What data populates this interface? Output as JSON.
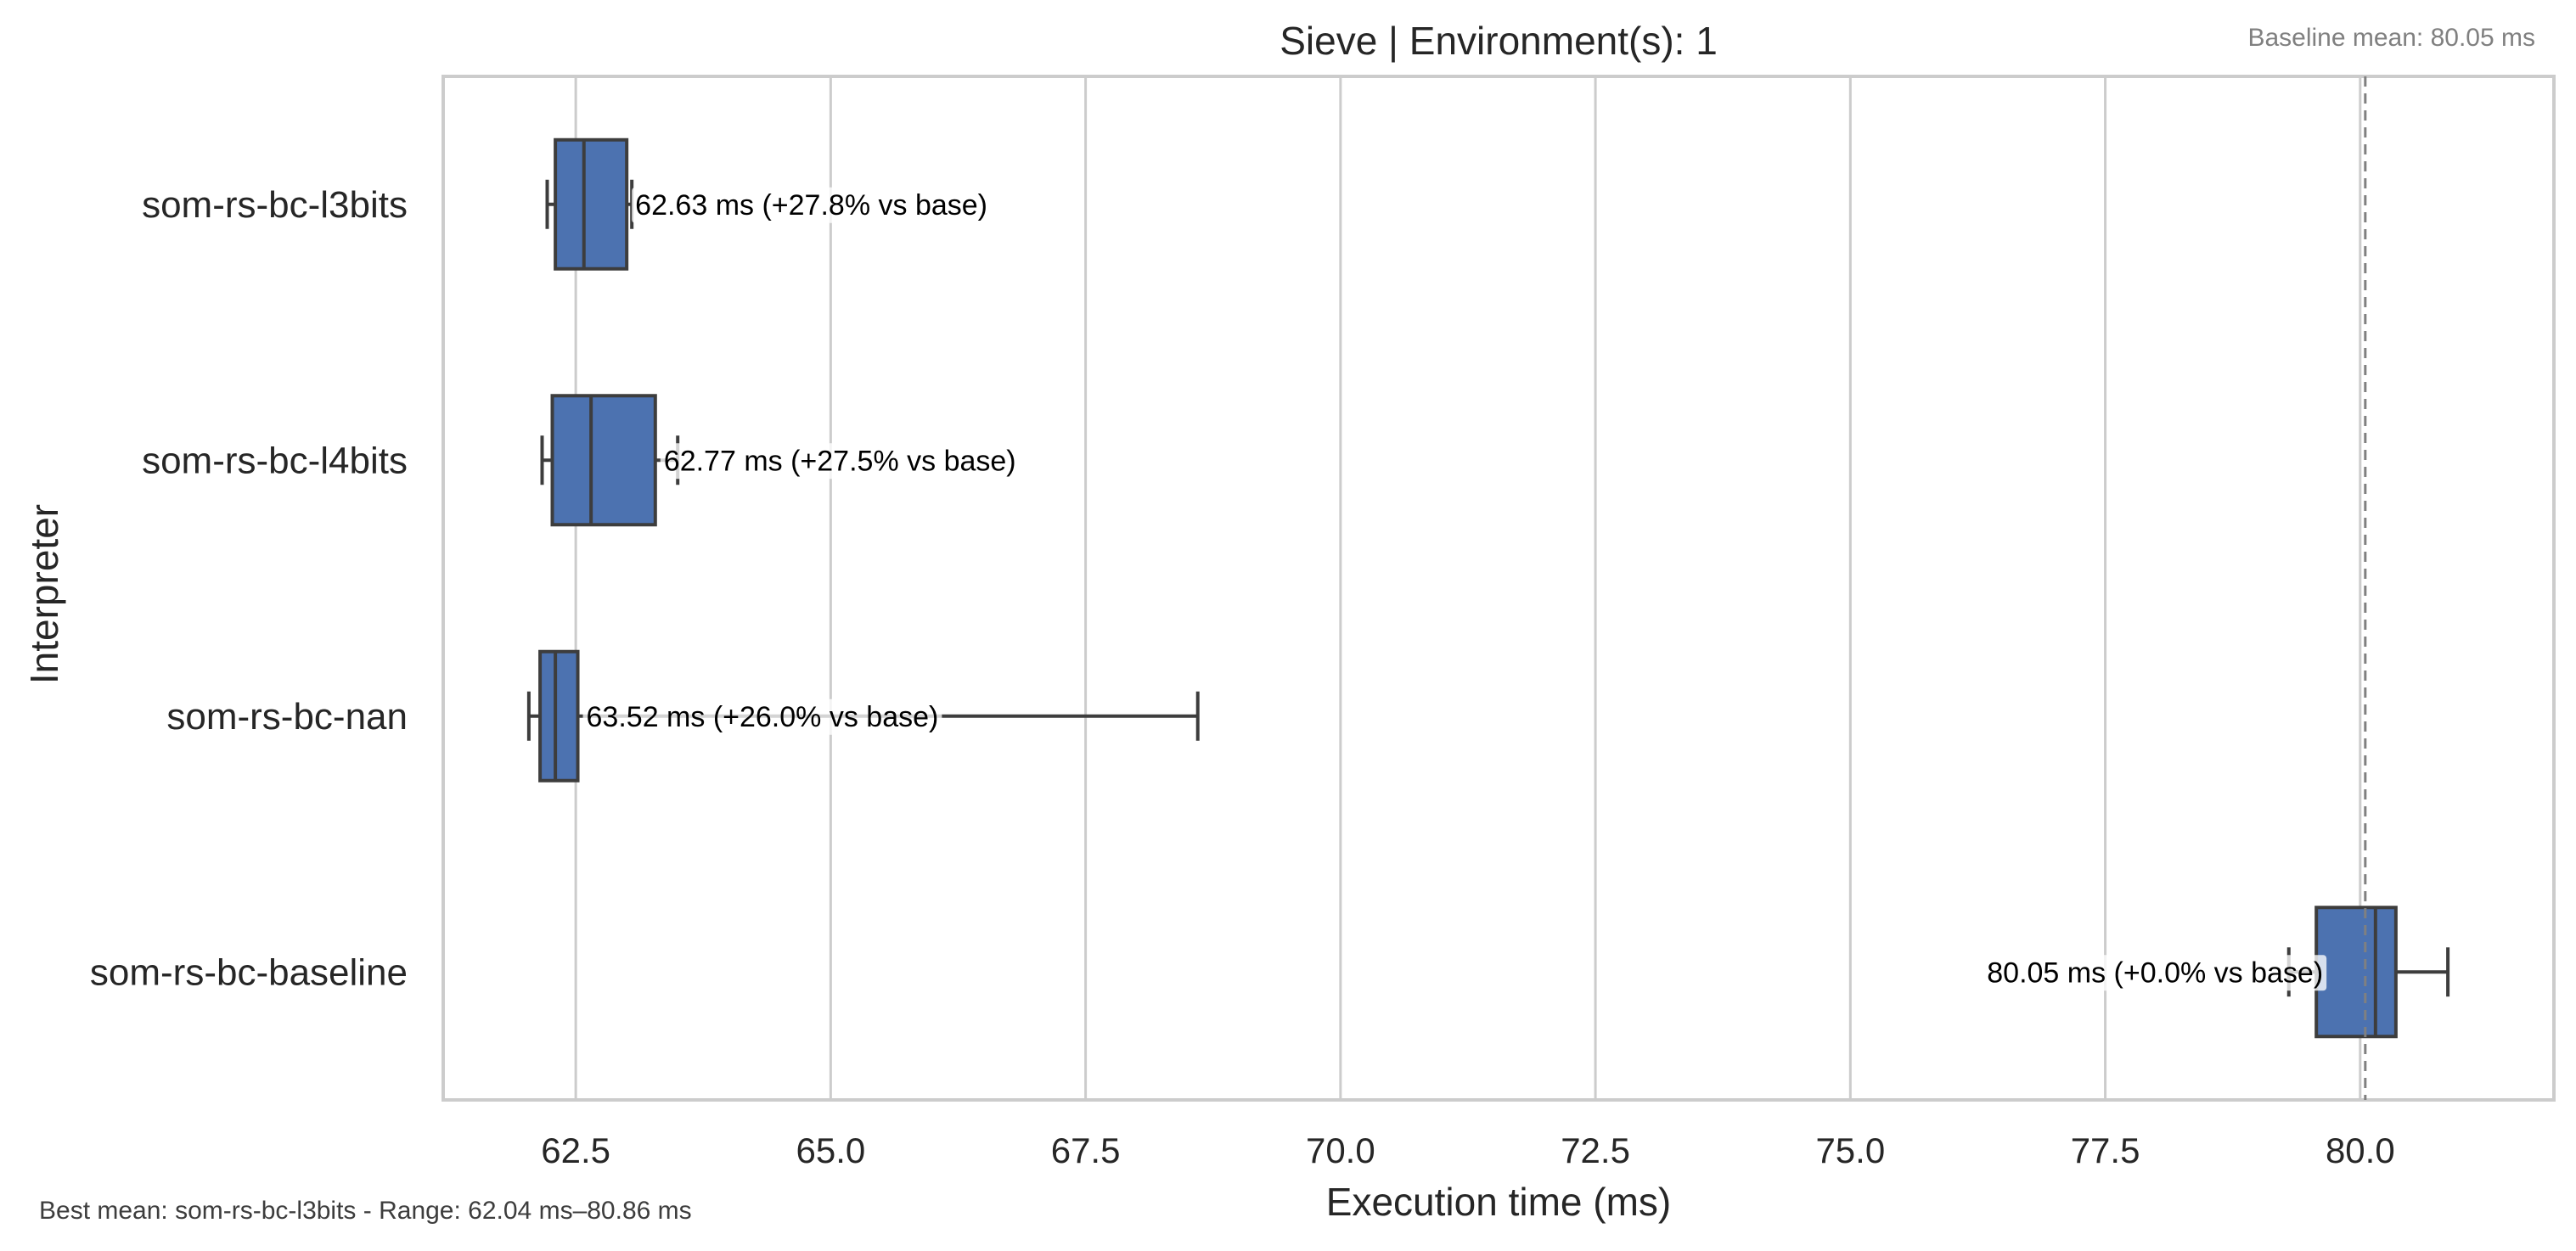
{
  "chart_data": {
    "type": "box",
    "orientation": "horizontal",
    "title": "Sieve | Environment(s): 1",
    "xlabel": "Execution time (ms)",
    "ylabel": "Interpreter",
    "xlim": [
      61.2,
      81.9
    ],
    "xticks": [
      62.5,
      65.0,
      67.5,
      70.0,
      72.5,
      75.0,
      77.5,
      80.0
    ],
    "xtick_labels": [
      "62.5",
      "65.0",
      "67.5",
      "70.0",
      "72.5",
      "75.0",
      "77.5",
      "80.0"
    ],
    "grid": "vertical",
    "categories": [
      "som-rs-bc-l3bits",
      "som-rs-bc-l4bits",
      "som-rs-bc-nan",
      "som-rs-bc-baseline"
    ],
    "boxes": [
      {
        "category": "som-rs-bc-l3bits",
        "whisker_low": 62.22,
        "q1": 62.3,
        "median": 62.58,
        "q3": 63.0,
        "whisker_high": 63.05,
        "mean": 62.63,
        "label": "62.63 ms  (+27.8% vs base)"
      },
      {
        "category": "som-rs-bc-l4bits",
        "whisker_low": 62.17,
        "q1": 62.27,
        "median": 62.65,
        "q3": 63.28,
        "whisker_high": 63.5,
        "mean": 62.77,
        "label": "62.77 ms  (+27.5% vs base)"
      },
      {
        "category": "som-rs-bc-nan",
        "whisker_low": 62.04,
        "q1": 62.15,
        "median": 62.3,
        "q3": 62.52,
        "whisker_high": 68.6,
        "mean": 63.52,
        "label": "63.52 ms  (+26.0% vs base)"
      },
      {
        "category": "som-rs-bc-baseline",
        "whisker_low": 79.3,
        "q1": 79.57,
        "median": 80.15,
        "q3": 80.35,
        "whisker_high": 80.86,
        "mean": 80.05,
        "label": "80.05 ms  (+0.0% vs base)"
      }
    ],
    "baseline_line": {
      "value": 80.05,
      "style": "dashed"
    },
    "baseline_note": "Baseline mean: 80.05 ms",
    "footer_note": "Best mean: som-rs-bc-l3bits - Range: 62.04 ms–80.86 ms",
    "colors": {
      "box_fill": "#4c72b0",
      "box_edge": "#3d3d3d",
      "grid": "#cccccc",
      "frame": "#cccccc",
      "baseline_line": "#808080",
      "note_text": "#808080",
      "label_bg": "#d8dde6"
    }
  }
}
